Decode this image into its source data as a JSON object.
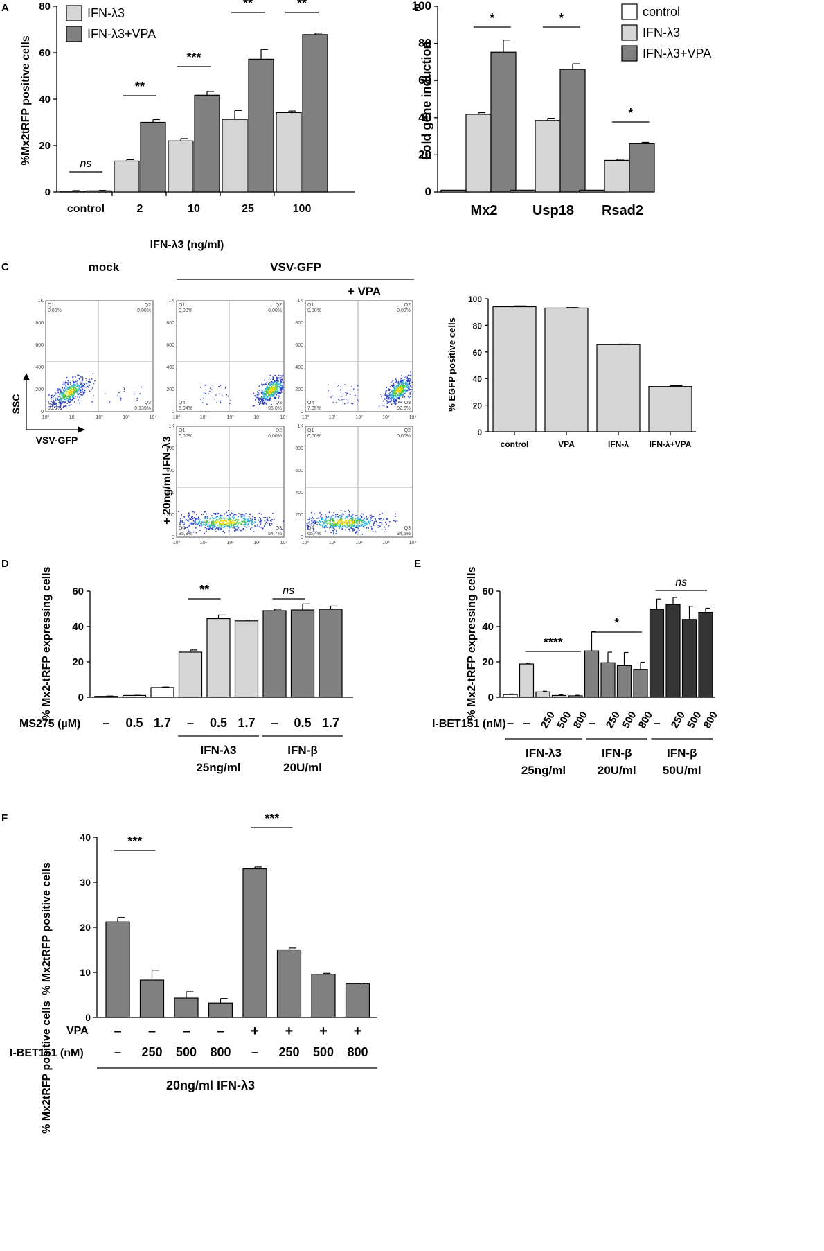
{
  "colors": {
    "light": "#d6d6d6",
    "mid": "#808080",
    "dark": "#353535",
    "white": "#ffffff",
    "axis": "#000000",
    "gate": "#999999"
  },
  "chart_data": [
    {
      "id": "A",
      "panel": "A",
      "type": "bar",
      "ylabel": "%Mx2tRFP positive cells",
      "xlabel": "IFN-λ3 (ng/ml)",
      "ylim": [
        0,
        80
      ],
      "yticks": [
        0,
        20,
        40,
        60,
        80
      ],
      "categories": [
        "control",
        "2",
        "10",
        "25",
        "100"
      ],
      "series": [
        {
          "name": "IFN-λ3",
          "color": "light",
          "values": [
            0.4,
            13.3,
            22,
            31.3,
            34.2
          ],
          "errors": [
            0.2,
            0.6,
            1.0,
            3.8,
            0.7
          ]
        },
        {
          "name": "IFN-λ3+VPA",
          "color": "mid",
          "values": [
            0.5,
            30,
            41.7,
            57.2,
            67.8
          ],
          "errors": [
            0.2,
            1.2,
            1.6,
            4.2,
            0.6
          ]
        }
      ],
      "significance": [
        {
          "label": "ns",
          "italic": true,
          "group": 0
        },
        {
          "label": "**",
          "group": 1
        },
        {
          "label": "***",
          "group": 2
        },
        {
          "label": "**",
          "group": 3
        },
        {
          "label": "**",
          "group": 4
        }
      ],
      "legend": "top-left"
    },
    {
      "id": "B",
      "panel": "B",
      "type": "bar",
      "ylabel": "Fold gene induction",
      "ylim": [
        0,
        100
      ],
      "yticks": [
        0,
        20,
        40,
        60,
        80,
        100
      ],
      "categories": [
        "Mx2",
        "Usp18",
        "Rsad2"
      ],
      "series": [
        {
          "name": "control",
          "color": "white",
          "values": [
            1,
            1,
            1
          ],
          "errors": [
            0,
            0,
            0
          ]
        },
        {
          "name": "IFN-λ3",
          "color": "light",
          "values": [
            41.8,
            38.5,
            17
          ],
          "errors": [
            0.9,
            1.2,
            0.6
          ]
        },
        {
          "name": "IFN-λ3+VPA",
          "color": "mid",
          "values": [
            75.3,
            66,
            26
          ],
          "errors": [
            6.5,
            3,
            0.7
          ]
        }
      ],
      "significance": [
        {
          "label": "*",
          "group": 0
        },
        {
          "label": "*",
          "group": 1
        },
        {
          "label": "*",
          "group": 2
        }
      ],
      "legend": "top-right"
    },
    {
      "id": "C",
      "panel": "",
      "type": "bar",
      "ylabel": "% EGFP positive cells",
      "ylim": [
        0,
        100
      ],
      "yticks": [
        0,
        20,
        40,
        60,
        80,
        100
      ],
      "categories": [
        "control",
        "VPA",
        "IFN-λ",
        "IFN-λ+VPA"
      ],
      "values": [
        94,
        93,
        65.5,
        34
      ],
      "errors": [
        0.6,
        0.4,
        0.4,
        0.6
      ],
      "color": "light"
    },
    {
      "id": "D",
      "panel": "D",
      "type": "bar",
      "ylabel": "% Mx2-tRFP expressing cells",
      "ylim": [
        0,
        60
      ],
      "yticks": [
        0,
        20,
        40,
        60
      ],
      "values": [
        0.5,
        1,
        5.5,
        25.5,
        44.5,
        43.2,
        49,
        49.4,
        49.8
      ],
      "errors": [
        0.2,
        0.1,
        0.3,
        1.2,
        2.0,
        0.5,
        0.8,
        3.4,
        1.8
      ],
      "colors": [
        "white",
        "white",
        "white",
        "light",
        "light",
        "light",
        "mid",
        "mid",
        "mid"
      ],
      "row_label": "MS275 (µM)",
      "row_values": [
        "–",
        "0.5",
        "1.7",
        "–",
        "0.5",
        "1.7",
        "–",
        "0.5",
        "1.7"
      ],
      "groups": [
        {
          "line1": "IFN-λ3",
          "line2": "25ng/ml"
        },
        {
          "line1": "IFN-β",
          "line2": "20U/ml"
        }
      ],
      "significance": [
        {
          "label": "**"
        },
        {
          "label": "ns",
          "italic": true
        }
      ]
    },
    {
      "id": "E",
      "panel": "E",
      "type": "bar",
      "ylabel": "% Mx2-tRFP expressing cells",
      "ylim": [
        0,
        60
      ],
      "yticks": [
        0,
        20,
        40,
        60
      ],
      "values": [
        1.5,
        18.8,
        3,
        1,
        0.8,
        26.2,
        19.5,
        17.9,
        15.8,
        49.8,
        52.5,
        44,
        48
      ],
      "errors": [
        0.3,
        0.5,
        0.4,
        0.3,
        0.3,
        11,
        6,
        7.4,
        4,
        5.8,
        4,
        7.5,
        2.4
      ],
      "colors": [
        "white",
        "light",
        "light",
        "light",
        "light",
        "mid",
        "mid",
        "mid",
        "mid",
        "dark",
        "dark",
        "dark",
        "dark"
      ],
      "row_label": "I-BET151 (nM)",
      "row_values": [
        "–",
        "–",
        "250",
        "500",
        "800",
        "–",
        "250",
        "500",
        "800",
        "–",
        "250",
        "500",
        "800"
      ],
      "groups": [
        {
          "line1": "IFN-λ3",
          "line2": "25ng/ml"
        },
        {
          "line1": "IFN-β",
          "line2": "20U/ml"
        },
        {
          "line1": "IFN-β",
          "line2": "50U/ml"
        }
      ],
      "significance": [
        {
          "label": "****"
        },
        {
          "label": "*"
        },
        {
          "label": "ns",
          "italic": true
        }
      ]
    },
    {
      "id": "F",
      "panel": "F",
      "type": "bar",
      "ylabel": "% Mx2tRFP positive cells",
      "ylim": [
        0,
        40
      ],
      "yticks": [
        0,
        10,
        20,
        30,
        40
      ],
      "values": [
        21.2,
        8.3,
        4.3,
        3.2,
        33,
        15,
        9.6,
        7.5
      ],
      "errors": [
        1.0,
        2.2,
        1.4,
        1.0,
        0.4,
        0.4,
        0.2,
        0.1
      ],
      "color": "mid",
      "row1_label": "VPA",
      "row1_values": [
        "–",
        "–",
        "–",
        "–",
        "+",
        "+",
        "+",
        "+"
      ],
      "row2_label": "I-BET151 (nM)",
      "row2_values": [
        "–",
        "250",
        "500",
        "800",
        "–",
        "250",
        "500",
        "800"
      ],
      "group_label": "20ng/ml IFN-λ3",
      "significance": [
        {
          "label": "***"
        },
        {
          "label": "***"
        }
      ]
    }
  ],
  "flow": {
    "header_mock": "mock",
    "header_vsv": "VSV-GFP",
    "header_vpa": "+ VPA",
    "side_label": "+ 20ng/ml IFN-λ3",
    "y_axis_label": "SSC",
    "x_axis_label": "VSV-GFP",
    "y_ticks": [
      "0",
      "200",
      "400",
      "600",
      "800",
      "1K"
    ],
    "x_ticks": [
      "10⁰",
      "10¹",
      "10²",
      "10³",
      "10⁴"
    ],
    "q_names": [
      "Q1",
      "Q2",
      "Q3",
      "Q4"
    ],
    "plots": [
      {
        "q1": "0,00%",
        "q2": "0,00%",
        "q3": "0,139%",
        "q4": "99,9%"
      },
      {
        "q1": "0,00%",
        "q2": "0,00%",
        "q3": "95,0%",
        "q4": "5,04%"
      },
      {
        "q1": "0,00%",
        "q2": "0,00%",
        "q3": "92,6%",
        "q4": "7,35%"
      },
      {
        "q1": "0,00%",
        "q2": "0,00%",
        "q3": "64,7%",
        "q4": "35,3%"
      },
      {
        "q1": "0,00%",
        "q2": "0,00%",
        "q3": "34,6%",
        "q4": "65,4%"
      }
    ]
  }
}
